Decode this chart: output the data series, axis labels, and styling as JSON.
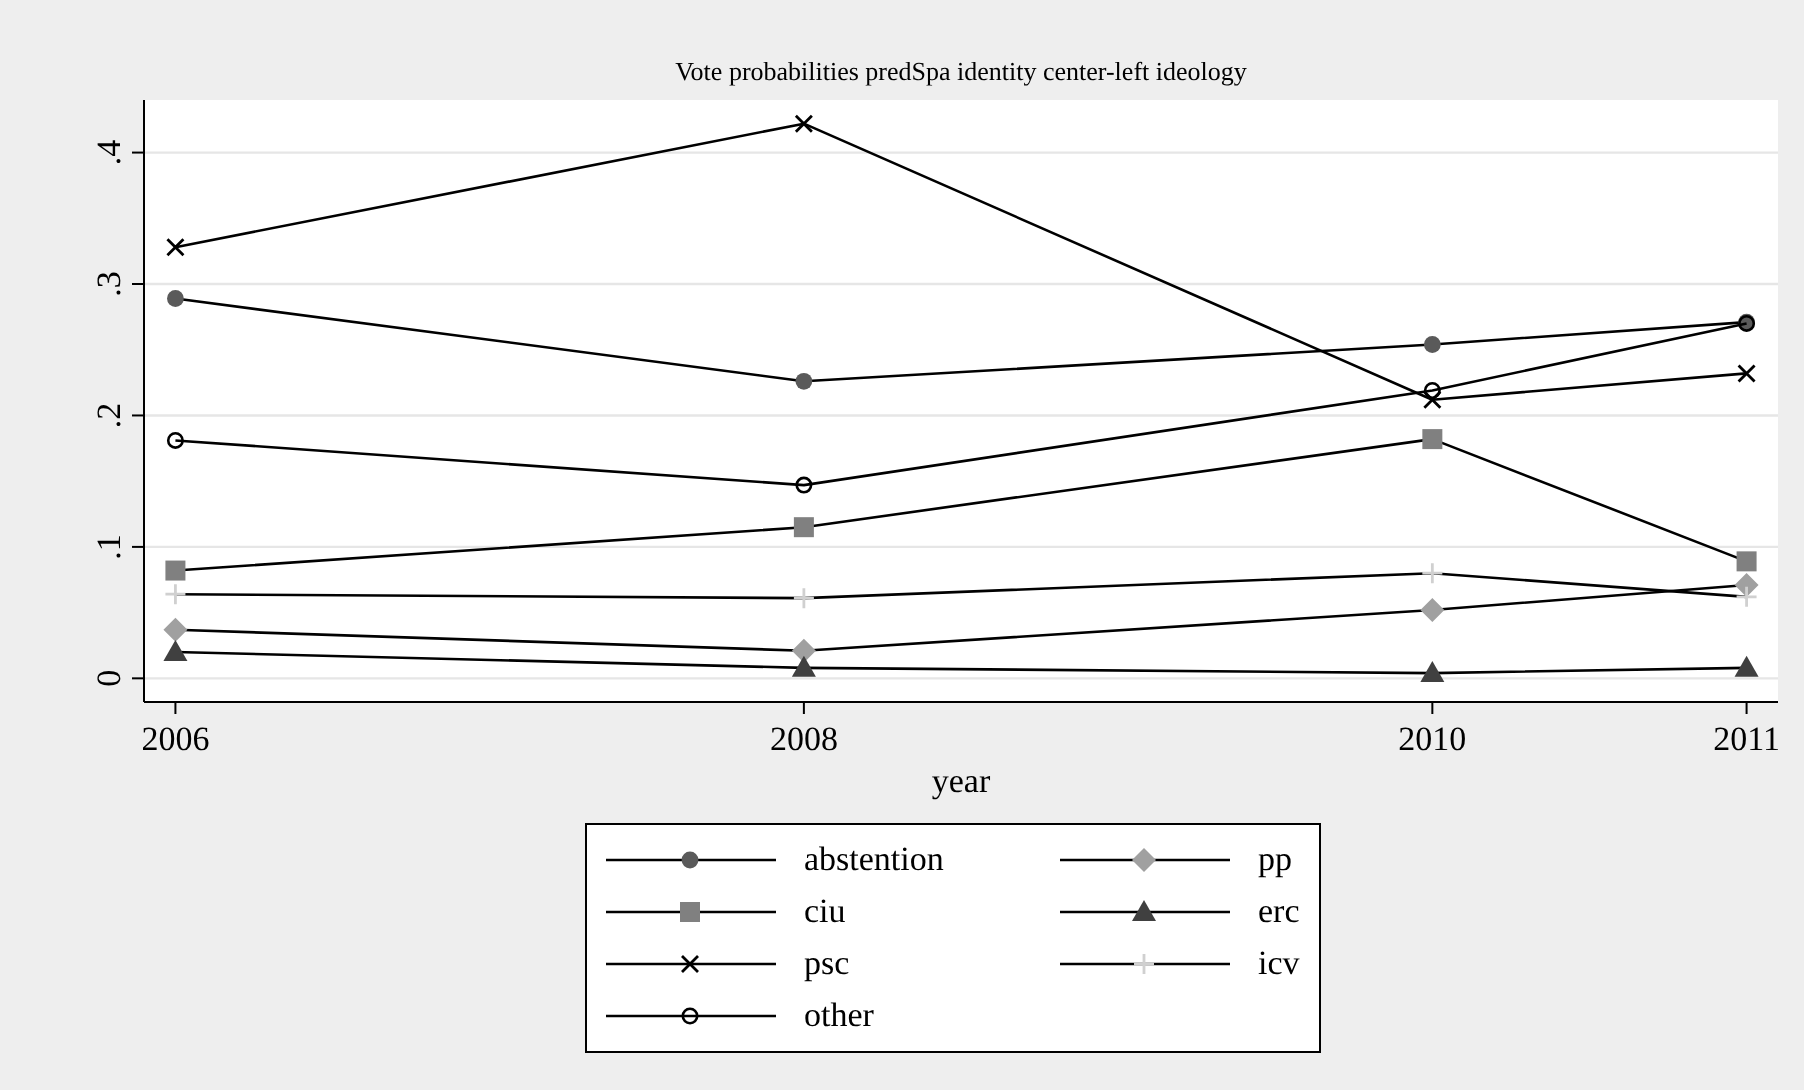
{
  "chart_data": {
    "type": "line",
    "title": "Vote probabilities predSpa identity center-left ideology",
    "xlabel": "year",
    "x": [
      2006,
      2008,
      2010,
      2011
    ],
    "xlim": [
      2005.9,
      2011.1
    ],
    "xticks": [
      2006,
      2008,
      2010,
      2011
    ],
    "ylim": [
      -0.018,
      0.44
    ],
    "yticks": [
      0,
      {
        "value": 0.1,
        "label": ".1"
      },
      {
        "value": 0.2,
        "label": ".2"
      },
      {
        "value": 0.3,
        "label": ".3"
      },
      {
        "value": 0.4,
        "label": ".4"
      }
    ],
    "grid": "y",
    "legend": "bottom",
    "series": [
      {
        "name": "abstention",
        "color": "#5a5a5a",
        "marker": "circle",
        "values": [
          0.289,
          0.226,
          0.254,
          0.271
        ]
      },
      {
        "name": "ciu",
        "color": "#808080",
        "marker": "square",
        "values": [
          0.082,
          0.115,
          0.182,
          0.089
        ]
      },
      {
        "name": "psc",
        "color": "#000000",
        "marker": "cross",
        "values": [
          0.328,
          0.422,
          0.212,
          0.232
        ]
      },
      {
        "name": "other",
        "color": "#000000",
        "marker": "circle-open",
        "values": [
          0.181,
          0.147,
          0.219,
          0.27
        ]
      },
      {
        "name": "pp",
        "color": "#a0a0a0",
        "marker": "diamond",
        "values": [
          0.037,
          0.021,
          0.052,
          0.071
        ]
      },
      {
        "name": "erc",
        "color": "#404040",
        "marker": "triangle",
        "values": [
          0.02,
          0.008,
          0.004,
          0.008
        ]
      },
      {
        "name": "icv",
        "color": "#d0d0d0",
        "marker": "plus",
        "values": [
          0.064,
          0.061,
          0.08,
          0.062
        ]
      }
    ]
  }
}
